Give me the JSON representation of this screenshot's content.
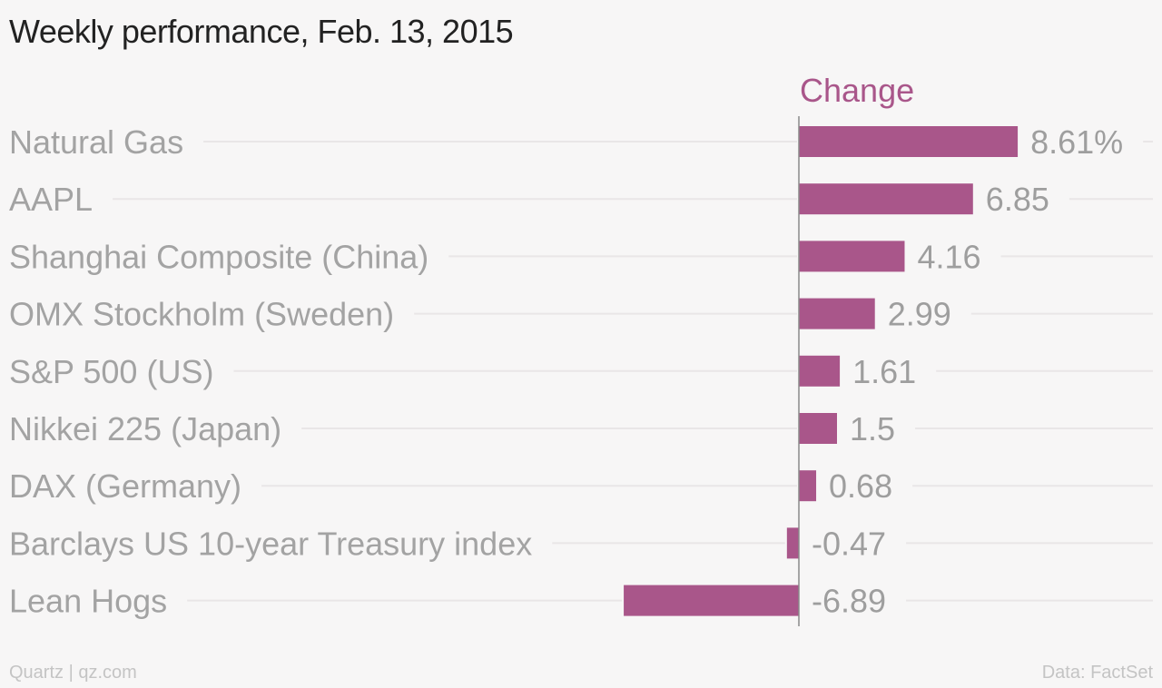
{
  "title": "Weekly performance, Feb. 13, 2015",
  "footer": {
    "source_left": "Quartz | qz.com",
    "source_right": "Data: FactSet"
  },
  "colors": {
    "bar": "#a9568a",
    "header": "#a9568a",
    "category_text": "#a3a3a3",
    "value_text": "#9e9e9e",
    "gridline": "#e9e6e7",
    "axis": "#8a8a8a"
  },
  "chart_data": {
    "type": "bar",
    "orientation": "horizontal",
    "column_header": "Change",
    "categories": [
      "Natural Gas",
      "AAPL",
      "Shanghai Composite (China)",
      "OMX Stockholm (Sweden)",
      "S&P 500 (US)",
      "Nikkei 225 (Japan)",
      "DAX (Germany)",
      "Barclays US 10-year Treasury index",
      "Lean Hogs"
    ],
    "values": [
      8.61,
      6.85,
      4.16,
      2.99,
      1.61,
      1.5,
      0.68,
      -0.47,
      -6.89
    ],
    "value_labels": [
      "8.61%",
      "6.85",
      "4.16",
      "2.99",
      "1.61",
      "1.5",
      "0.68",
      "-0.47",
      "-6.89"
    ],
    "unit": "%",
    "xlim": [
      -6.89,
      8.61
    ],
    "grid": true
  }
}
